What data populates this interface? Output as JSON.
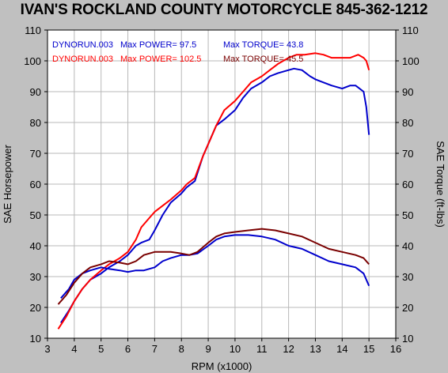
{
  "title": "IVAN'S ROCKLAND COUNTY MOTORCYCLE 845-362-1212",
  "chart_data": {
    "type": "line",
    "xlabel": "RPM (x1000)",
    "ylabel_left": "SAE Horsepower",
    "ylabel_right": "SAE Torque (ft-lbs)",
    "xlim": [
      3,
      16
    ],
    "ylim": [
      10,
      110
    ],
    "x_ticks": [
      3,
      4,
      5,
      6,
      7,
      8,
      9,
      10,
      11,
      12,
      13,
      14,
      15,
      16
    ],
    "y_ticks": [
      10,
      20,
      30,
      40,
      50,
      60,
      70,
      80,
      90,
      100,
      110
    ],
    "grid": true,
    "legend": [
      {
        "run": "DYNORUN.003",
        "power_label": "Max POWER= 97.5",
        "torque_label": "Max TORQUE= 43.8",
        "color": "#0000cc"
      },
      {
        "run": "DYNORUN.003",
        "power_label": "Max POWER= 102.5",
        "torque_label": "Max TORQUE= 45.5",
        "color": "#ff0000"
      }
    ],
    "series": [
      {
        "color": "#0000cc",
        "x": [
          3.5,
          3.8,
          4.0,
          4.3,
          4.6,
          5.0,
          5.3,
          5.7,
          6.0,
          6.3,
          6.5,
          6.8,
          7.0,
          7.3,
          7.6,
          8.0,
          8.2,
          8.5,
          8.8,
          9.0,
          9.3,
          9.6,
          10.0,
          10.3,
          10.6,
          11.0,
          11.3,
          11.6,
          12.0,
          12.2,
          12.5,
          12.8,
          13.0,
          13.3,
          13.6,
          14.0,
          14.3,
          14.5,
          14.8,
          14.9,
          15.0
        ],
        "y": [
          15,
          19,
          22,
          26,
          29,
          31,
          33,
          35,
          37,
          40,
          41,
          42,
          45,
          50,
          54,
          57,
          59,
          61,
          69,
          73,
          79,
          81,
          84,
          88,
          91,
          93,
          95,
          96,
          97,
          97.5,
          97,
          95,
          94,
          93,
          92,
          91,
          92,
          92,
          90,
          85,
          76
        ]
      },
      {
        "color": "#ff0000",
        "x": [
          3.4,
          3.7,
          4.0,
          4.3,
          4.6,
          5.0,
          5.3,
          5.7,
          6.0,
          6.3,
          6.5,
          6.8,
          7.0,
          7.3,
          7.6,
          8.0,
          8.2,
          8.5,
          8.8,
          9.0,
          9.3,
          9.6,
          10.0,
          10.3,
          10.6,
          11.0,
          11.3,
          11.6,
          12.0,
          12.3,
          12.6,
          13.0,
          13.3,
          13.6,
          14.0,
          14.3,
          14.6,
          14.8,
          14.9,
          15.0
        ],
        "y": [
          13,
          17,
          22,
          26,
          29,
          32,
          34,
          36,
          38,
          42,
          46,
          49,
          51,
          53,
          55,
          58,
          60,
          62,
          69,
          73,
          79,
          84,
          87,
          90,
          93,
          95,
          97,
          99,
          101,
          102,
          102,
          102.5,
          102,
          101,
          101,
          101,
          102,
          101,
          100,
          97
        ]
      },
      {
        "color": "#0000cc",
        "x": [
          3.5,
          3.8,
          4.0,
          4.3,
          4.6,
          5.0,
          5.3,
          5.7,
          6.0,
          6.3,
          6.6,
          7.0,
          7.3,
          7.6,
          8.0,
          8.3,
          8.6,
          9.0,
          9.3,
          9.6,
          10.0,
          10.5,
          11.0,
          11.5,
          12.0,
          12.5,
          13.0,
          13.5,
          14.0,
          14.5,
          14.8,
          14.9,
          15.0
        ],
        "y": [
          23,
          26,
          29,
          31,
          32,
          33,
          32.5,
          32,
          31.5,
          32,
          32,
          33,
          35,
          36,
          37,
          37,
          37.5,
          40,
          42,
          43,
          43.5,
          43.5,
          43,
          42,
          40,
          39,
          37,
          35,
          34,
          33,
          31,
          29,
          27
        ]
      },
      {
        "color": "#7a0000",
        "x": [
          3.4,
          3.7,
          4.0,
          4.3,
          4.6,
          5.0,
          5.3,
          5.7,
          6.0,
          6.3,
          6.6,
          7.0,
          7.3,
          7.6,
          8.0,
          8.3,
          8.6,
          9.0,
          9.3,
          9.6,
          10.0,
          10.5,
          11.0,
          11.5,
          12.0,
          12.5,
          13.0,
          13.5,
          14.0,
          14.5,
          14.8,
          14.9,
          15.0
        ],
        "y": [
          21,
          24,
          28,
          31,
          33,
          34,
          35,
          34.5,
          34,
          35,
          37,
          38,
          38,
          38,
          37.5,
          37,
          38,
          41,
          43,
          44,
          44.5,
          45,
          45.5,
          45,
          44,
          43,
          41,
          39,
          38,
          37,
          36,
          35,
          34
        ]
      }
    ]
  }
}
